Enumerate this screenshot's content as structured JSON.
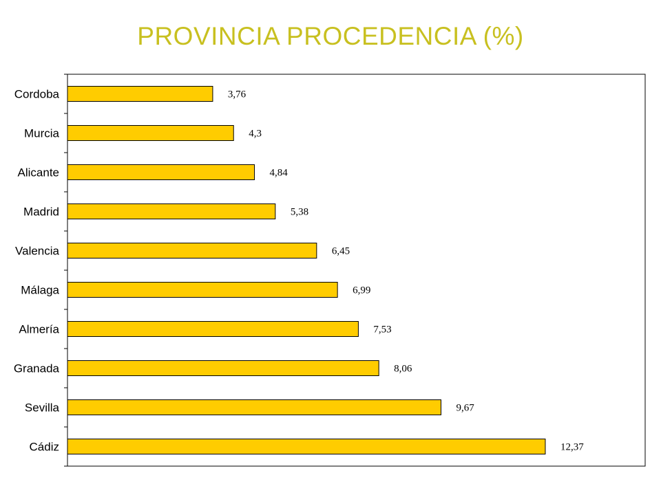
{
  "colors": {
    "title": "#c8c020",
    "bar_fill": "#ffcc00",
    "bar_stroke": "#000000",
    "axis": "#000000"
  },
  "chart_data": {
    "type": "bar",
    "orientation": "horizontal",
    "title": "PROVINCIA PROCEDENCIA (%)",
    "categories": [
      "Cordoba",
      "Murcia",
      "Alicante",
      "Madrid",
      "Valencia",
      "Málaga",
      "Almería",
      "Granada",
      "Sevilla",
      "Cádiz"
    ],
    "values": [
      3.76,
      4.3,
      4.84,
      5.38,
      6.45,
      6.99,
      7.53,
      8.06,
      9.67,
      12.37
    ],
    "value_labels": [
      "3,76",
      "4,3",
      "4,84",
      "5,38",
      "6,45",
      "6,99",
      "7,53",
      "8,06",
      "9,67",
      "12,37"
    ],
    "xlim": [
      0,
      15
    ],
    "xlabel": "",
    "ylabel": "",
    "grid": false,
    "legend": "none"
  }
}
